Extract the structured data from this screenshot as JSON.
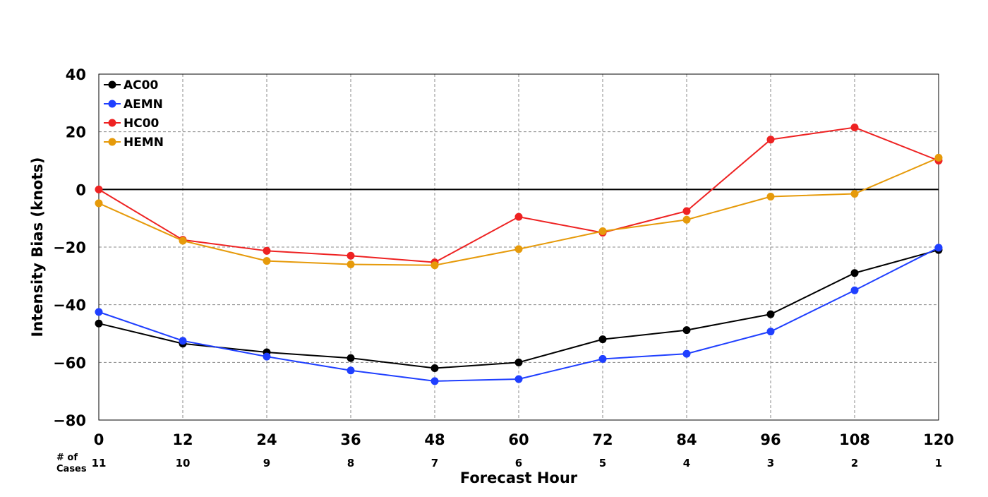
{
  "chart_data": {
    "type": "line",
    "title": "",
    "xlabel": "Forecast Hour",
    "ylabel": "Intensity Bias (knots)",
    "xlim": [
      0,
      120
    ],
    "ylim": [
      -80,
      40
    ],
    "x": [
      0,
      12,
      24,
      36,
      48,
      60,
      72,
      84,
      96,
      108,
      120
    ],
    "x_ticks": [
      "0",
      "12",
      "24",
      "36",
      "48",
      "60",
      "72",
      "84",
      "96",
      "108",
      "120"
    ],
    "y_ticks": [
      "40",
      "20",
      "0",
      "−20",
      "−40",
      "−60",
      "−80"
    ],
    "y_tick_values": [
      40,
      20,
      0,
      -20,
      -40,
      -60,
      -80
    ],
    "grid": true,
    "zero_line": true,
    "legend_position": "top-left",
    "cases_header": [
      "# of",
      "Cases"
    ],
    "cases": [
      "11",
      "10",
      "9",
      "8",
      "7",
      "6",
      "5",
      "4",
      "3",
      "2",
      "1"
    ],
    "series": [
      {
        "name": "AC00",
        "color": "#000000",
        "values": [
          -46.5,
          -53.5,
          -56.5,
          -58.5,
          -62,
          -60,
          -52,
          -48.8,
          -43.3,
          -29,
          -21
        ]
      },
      {
        "name": "AEMN",
        "color": "#1f3fff",
        "values": [
          -42.5,
          -52.5,
          -58,
          -62.8,
          -66.5,
          -65.8,
          -58.8,
          -57,
          -49.3,
          -35,
          -20.2
        ]
      },
      {
        "name": "HC00",
        "color": "#ee2222",
        "values": [
          0,
          -17.5,
          -21.3,
          -23,
          -25.3,
          -9.5,
          -15,
          -7.5,
          17.3,
          21.5,
          10
        ]
      },
      {
        "name": "HEMN",
        "color": "#e69a0a",
        "values": [
          -4.8,
          -17.8,
          -24.8,
          -26,
          -26.3,
          -20.7,
          -14.5,
          -10.5,
          -2.5,
          -1.5,
          11
        ]
      }
    ]
  }
}
